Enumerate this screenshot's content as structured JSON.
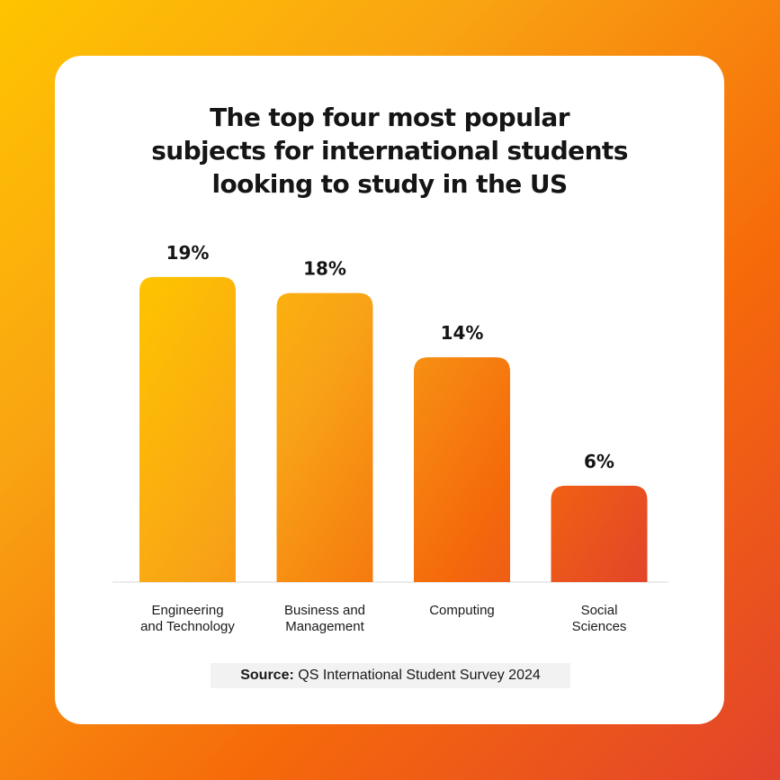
{
  "colors": {
    "background_start": "#FFC400",
    "background_end": "#E2432C",
    "card": "#FFFFFF",
    "bar_gradient": [
      "#FFC400",
      "#F8A317",
      "#F56A0B",
      "#E2452A"
    ]
  },
  "chart_data": {
    "type": "bar",
    "title": "The top four most popular\nsubjects for international students\nlooking to study in the US",
    "categories": [
      "Engineering\nand Technology",
      "Business and\nManagement",
      "Computing",
      "Social\nSciences"
    ],
    "values": [
      19,
      18,
      14,
      6
    ],
    "value_labels": [
      "19%",
      "18%",
      "14%",
      "6%"
    ],
    "unit": "%",
    "ylim": [
      0,
      20
    ],
    "grid": false,
    "legend": "none"
  },
  "source": {
    "label": "Source:",
    "text": " QS International Student Survey 2024"
  }
}
